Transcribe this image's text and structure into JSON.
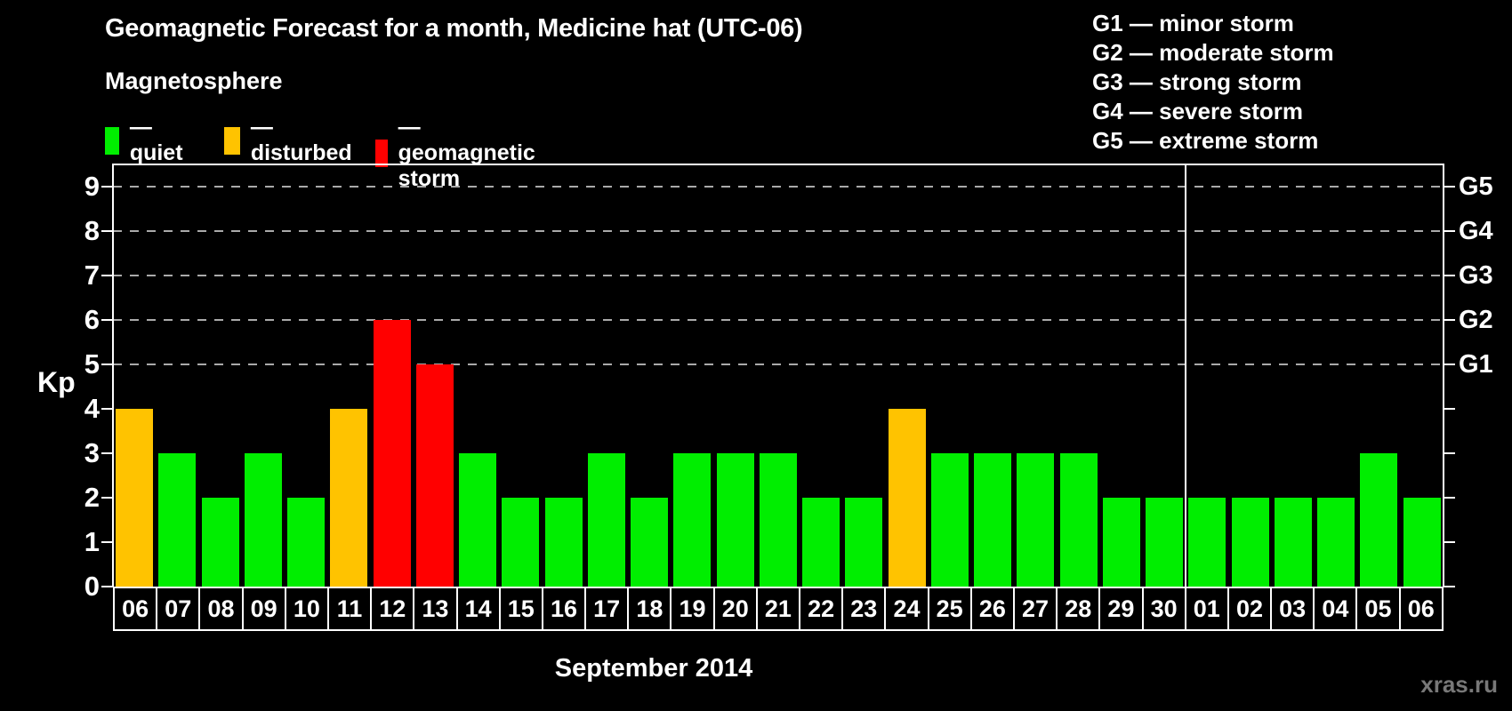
{
  "title": "Geomagnetic Forecast for a month, Medicine hat (UTC-06)",
  "magnetosphere_legend": {
    "heading": "Magnetosphere",
    "items": [
      {
        "name": "quiet",
        "label": "— quiet",
        "color": "#00ee00"
      },
      {
        "name": "disturbed",
        "label": "— disturbed",
        "color": "#ffc300"
      },
      {
        "name": "storm",
        "label": "— geomagnetic storm",
        "color": "#ff0000"
      }
    ]
  },
  "storm_scale_legend": [
    "G1 — minor storm",
    "G2 — moderate storm",
    "G3 — strong storm",
    "G4 — severe storm",
    "G5 — extreme storm"
  ],
  "footer": {
    "month_label": "September 2014",
    "watermark": "xras.ru"
  },
  "chart_data": {
    "type": "bar",
    "title": "Geomagnetic Forecast for a month, Medicine hat (UTC-06)",
    "xlabel": "September 2014",
    "ylabel": "Kp",
    "ylim": [
      0,
      9.4
    ],
    "yticks": [
      0,
      1,
      2,
      3,
      4,
      5,
      6,
      7,
      8,
      9
    ],
    "grid": "dashed horizontal lines at Kp 5-9 only",
    "legend_position": "top",
    "right_axis_labels": [
      {
        "label": "G1",
        "kp": 5
      },
      {
        "label": "G2",
        "kp": 6
      },
      {
        "label": "G3",
        "kp": 7
      },
      {
        "label": "G4",
        "kp": 8
      },
      {
        "label": "G5",
        "kp": 9
      }
    ],
    "status_colors": {
      "quiet": "#00ee00",
      "disturbed": "#ffc300",
      "storm": "#ff0000"
    },
    "month_separator_after_index": 24,
    "bars": [
      {
        "day": "06",
        "kp": 4,
        "status": "disturbed"
      },
      {
        "day": "07",
        "kp": 3,
        "status": "quiet"
      },
      {
        "day": "08",
        "kp": 2,
        "status": "quiet"
      },
      {
        "day": "09",
        "kp": 3,
        "status": "quiet"
      },
      {
        "day": "10",
        "kp": 2,
        "status": "quiet"
      },
      {
        "day": "11",
        "kp": 4,
        "status": "disturbed"
      },
      {
        "day": "12",
        "kp": 6,
        "status": "storm"
      },
      {
        "day": "13",
        "kp": 5,
        "status": "storm"
      },
      {
        "day": "14",
        "kp": 3,
        "status": "quiet"
      },
      {
        "day": "15",
        "kp": 2,
        "status": "quiet"
      },
      {
        "day": "16",
        "kp": 2,
        "status": "quiet"
      },
      {
        "day": "17",
        "kp": 3,
        "status": "quiet"
      },
      {
        "day": "18",
        "kp": 2,
        "status": "quiet"
      },
      {
        "day": "19",
        "kp": 3,
        "status": "quiet"
      },
      {
        "day": "20",
        "kp": 3,
        "status": "quiet"
      },
      {
        "day": "21",
        "kp": 3,
        "status": "quiet"
      },
      {
        "day": "22",
        "kp": 2,
        "status": "quiet"
      },
      {
        "day": "23",
        "kp": 2,
        "status": "quiet"
      },
      {
        "day": "24",
        "kp": 4,
        "status": "disturbed"
      },
      {
        "day": "25",
        "kp": 3,
        "status": "quiet"
      },
      {
        "day": "26",
        "kp": 3,
        "status": "quiet"
      },
      {
        "day": "27",
        "kp": 3,
        "status": "quiet"
      },
      {
        "day": "28",
        "kp": 3,
        "status": "quiet"
      },
      {
        "day": "29",
        "kp": 2,
        "status": "quiet"
      },
      {
        "day": "30",
        "kp": 2,
        "status": "quiet"
      },
      {
        "day": "01",
        "kp": 2,
        "status": "quiet"
      },
      {
        "day": "02",
        "kp": 2,
        "status": "quiet"
      },
      {
        "day": "03",
        "kp": 2,
        "status": "quiet"
      },
      {
        "day": "04",
        "kp": 2,
        "status": "quiet"
      },
      {
        "day": "05",
        "kp": 3,
        "status": "quiet"
      },
      {
        "day": "06",
        "kp": 2,
        "status": "quiet"
      }
    ]
  }
}
